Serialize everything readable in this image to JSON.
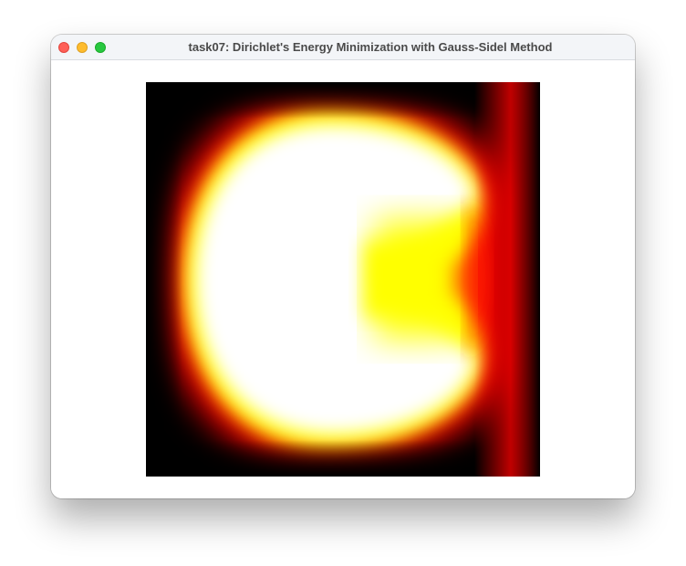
{
  "window": {
    "title": "task07: Dirichlet's Energy Minimization with Gauss-Sidel Method",
    "buttons": [
      "close",
      "minimize",
      "zoom"
    ]
  },
  "render": {
    "description_icon": "heatmap-icon",
    "colormap": [
      "#000000",
      "#ff0000",
      "#ffff00",
      "#ffffff"
    ]
  }
}
